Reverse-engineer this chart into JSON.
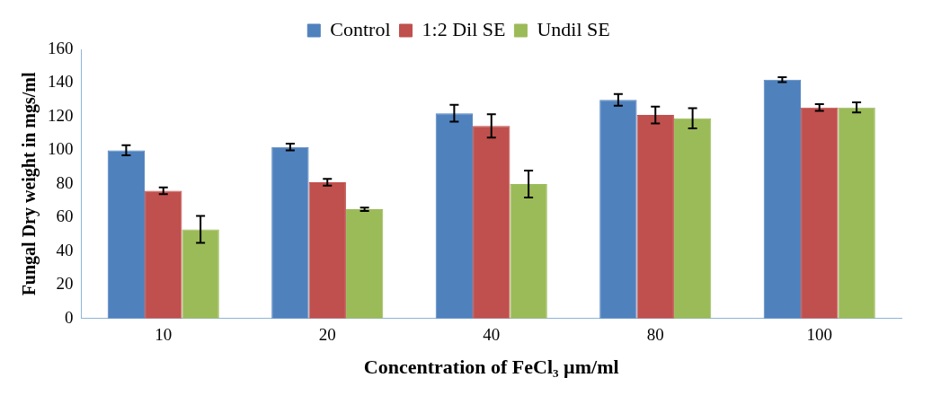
{
  "chart_data": {
    "type": "bar",
    "xlabel": "Concentration of FeCl₃ µm/ml",
    "ylabel": "Fungal Dry weight in mgs/ml",
    "categories": [
      "10",
      "20",
      "40",
      "80",
      "100"
    ],
    "series": [
      {
        "name": "Control",
        "color": "#4f81bd",
        "values": [
          100,
          102,
          122,
          130,
          142
        ],
        "errors": [
          3,
          2,
          5,
          3.5,
          1.5
        ]
      },
      {
        "name": "1:2 Dil SE",
        "color": "#c0504d",
        "values": [
          76,
          81,
          114.5,
          121,
          125.5
        ],
        "errors": [
          2,
          2,
          7,
          5,
          2
        ]
      },
      {
        "name": "Undil SE",
        "color": "#9bbb59",
        "values": [
          53,
          65,
          80,
          119,
          125.5
        ],
        "errors": [
          8,
          1,
          8,
          6,
          3
        ]
      }
    ],
    "ylim": [
      0,
      160
    ],
    "yticks": [
      0,
      20,
      40,
      60,
      80,
      100,
      120,
      140,
      160
    ],
    "grid": false,
    "legend": "top"
  }
}
